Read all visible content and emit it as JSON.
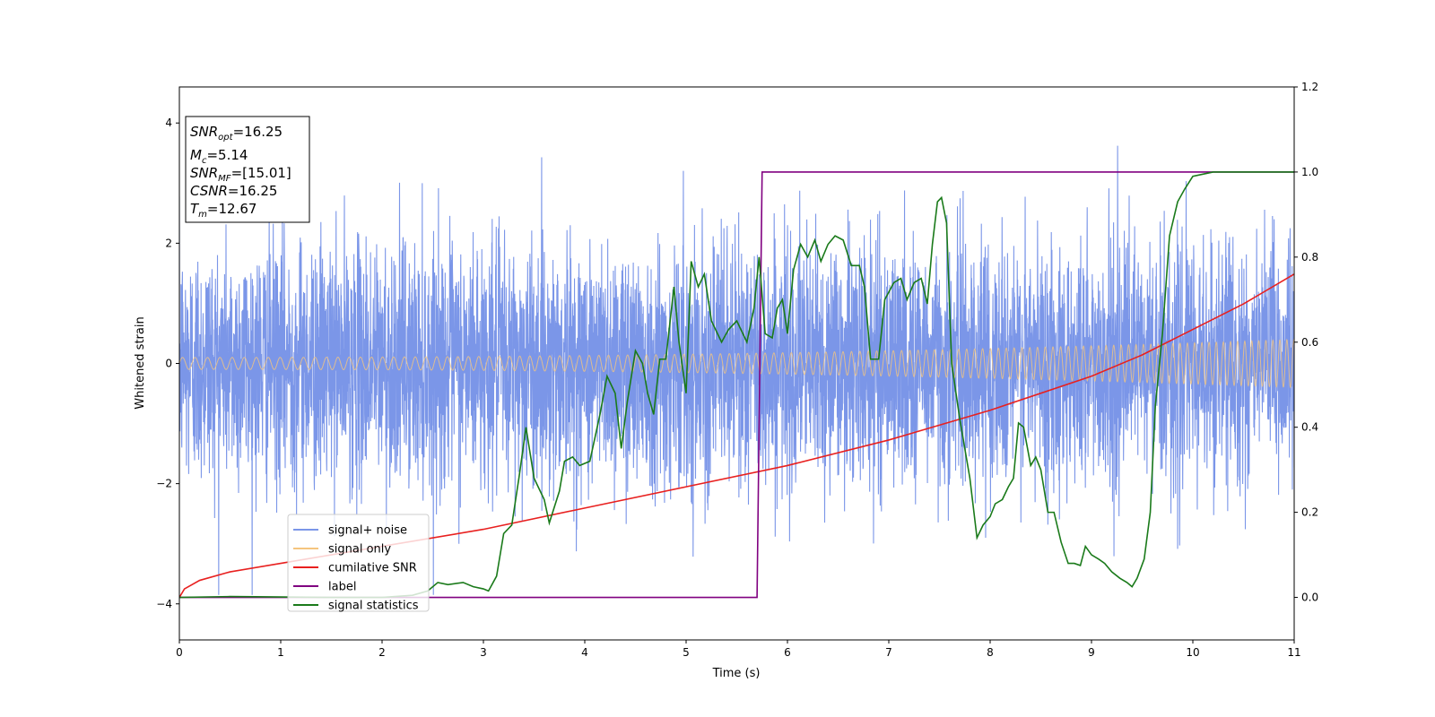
{
  "chart_data": {
    "type": "line",
    "xlabel": "Time (s)",
    "ylabel": "Whitened strain",
    "xlim": [
      0,
      11
    ],
    "ylim": [
      -4.6,
      4.6
    ],
    "y2lim": [
      -0.1,
      1.2
    ],
    "x_ticks": [
      0,
      1,
      2,
      3,
      4,
      5,
      6,
      7,
      8,
      9,
      10,
      11
    ],
    "y_ticks": [
      -4,
      -2,
      0,
      2,
      4
    ],
    "y_tick_labels": [
      "−4",
      "−2",
      "0",
      "2",
      "4"
    ],
    "y2_ticks": [
      0.0,
      0.2,
      0.4,
      0.6,
      0.8,
      1.0,
      1.2
    ],
    "y2_tick_labels": [
      "0.0",
      "0.2",
      "0.4",
      "0.6",
      "0.8",
      "1.0",
      "1.2"
    ],
    "grid": false,
    "legend_position": "lower-left",
    "info_box": {
      "snr_opt": "=16.25",
      "mc": "=5.14",
      "snr_mf": "=[15.01]",
      "csnr": "=16.25",
      "tm": "=12.67"
    },
    "series": [
      {
        "name": "signal+ noise",
        "axis": "left",
        "color": "#7b96e8",
        "description": "whitened noise, approx. standard normal, |y| up to ~4.1"
      },
      {
        "name": "signal only",
        "axis": "left",
        "color": "#f5c57e",
        "description": "chirp with amplitude growing from ~0.1 at t=0 to ~0.4 at t=11",
        "amplitude_start": 0.1,
        "amplitude_end": 0.4
      },
      {
        "name": "cumilative SNR",
        "axis": "right",
        "color": "#e8201f",
        "x": [
          0,
          0.05,
          0.2,
          0.5,
          1,
          2,
          3,
          4,
          5,
          6,
          7,
          8,
          9,
          9.5,
          10,
          10.5,
          11
        ],
        "y": [
          0.0,
          0.02,
          0.04,
          0.06,
          0.08,
          0.12,
          0.16,
          0.21,
          0.26,
          0.31,
          0.37,
          0.44,
          0.52,
          0.57,
          0.63,
          0.69,
          0.76
        ]
      },
      {
        "name": "label",
        "axis": "right",
        "color": "#800080",
        "x": [
          0,
          5.7,
          5.75,
          11
        ],
        "y": [
          0,
          0,
          1,
          1
        ]
      },
      {
        "name": "signal statistics",
        "axis": "right",
        "color": "#1a7a1a",
        "x": [
          0,
          0.5,
          1,
          1.5,
          2,
          2.3,
          2.45,
          2.55,
          2.65,
          2.8,
          2.9,
          3.0,
          3.05,
          3.13,
          3.2,
          3.28,
          3.35,
          3.42,
          3.5,
          3.6,
          3.65,
          3.75,
          3.8,
          3.88,
          3.95,
          4.05,
          4.15,
          4.22,
          4.3,
          4.36,
          4.42,
          4.5,
          4.57,
          4.62,
          4.68,
          4.74,
          4.8,
          4.88,
          4.93,
          5.0,
          5.05,
          5.12,
          5.18,
          5.25,
          5.35,
          5.42,
          5.5,
          5.6,
          5.67,
          5.72,
          5.78,
          5.85,
          5.9,
          5.95,
          6.0,
          6.06,
          6.13,
          6.2,
          6.27,
          6.33,
          6.4,
          6.47,
          6.55,
          6.63,
          6.71,
          6.76,
          6.82,
          6.9,
          6.96,
          7.05,
          7.12,
          7.18,
          7.25,
          7.32,
          7.38,
          7.43,
          7.48,
          7.52,
          7.57,
          7.62,
          7.7,
          7.8,
          7.87,
          7.93,
          8.0,
          8.05,
          8.12,
          8.18,
          8.23,
          8.28,
          8.33,
          8.4,
          8.45,
          8.5,
          8.57,
          8.63,
          8.7,
          8.77,
          8.83,
          8.89,
          8.94,
          9.0,
          9.07,
          9.13,
          9.2,
          9.28,
          9.35,
          9.4,
          9.45,
          9.52,
          9.58,
          9.63,
          9.7,
          9.77,
          9.85,
          9.92,
          10.0,
          10.1,
          10.2,
          10.35,
          10.5,
          10.7,
          10.9,
          11.0
        ],
        "y": [
          0.0,
          0.002,
          0.001,
          0.0,
          0.0,
          0.005,
          0.015,
          0.035,
          0.03,
          0.035,
          0.025,
          0.02,
          0.015,
          0.05,
          0.15,
          0.17,
          0.28,
          0.4,
          0.28,
          0.23,
          0.175,
          0.25,
          0.32,
          0.33,
          0.31,
          0.32,
          0.43,
          0.52,
          0.48,
          0.35,
          0.46,
          0.58,
          0.55,
          0.48,
          0.43,
          0.56,
          0.56,
          0.73,
          0.6,
          0.48,
          0.79,
          0.73,
          0.76,
          0.65,
          0.6,
          0.63,
          0.65,
          0.6,
          0.68,
          0.8,
          0.62,
          0.61,
          0.68,
          0.7,
          0.62,
          0.77,
          0.83,
          0.8,
          0.84,
          0.79,
          0.83,
          0.85,
          0.84,
          0.78,
          0.78,
          0.73,
          0.56,
          0.56,
          0.7,
          0.74,
          0.75,
          0.7,
          0.74,
          0.75,
          0.69,
          0.83,
          0.93,
          0.94,
          0.88,
          0.55,
          0.42,
          0.28,
          0.14,
          0.17,
          0.19,
          0.22,
          0.23,
          0.26,
          0.28,
          0.41,
          0.4,
          0.31,
          0.33,
          0.3,
          0.2,
          0.2,
          0.13,
          0.08,
          0.08,
          0.075,
          0.12,
          0.1,
          0.09,
          0.08,
          0.06,
          0.045,
          0.035,
          0.025,
          0.045,
          0.09,
          0.2,
          0.45,
          0.62,
          0.85,
          0.93,
          0.96,
          0.99,
          0.995,
          1.0,
          1.0,
          1.0,
          1.0,
          1.0,
          1.0
        ]
      }
    ]
  }
}
